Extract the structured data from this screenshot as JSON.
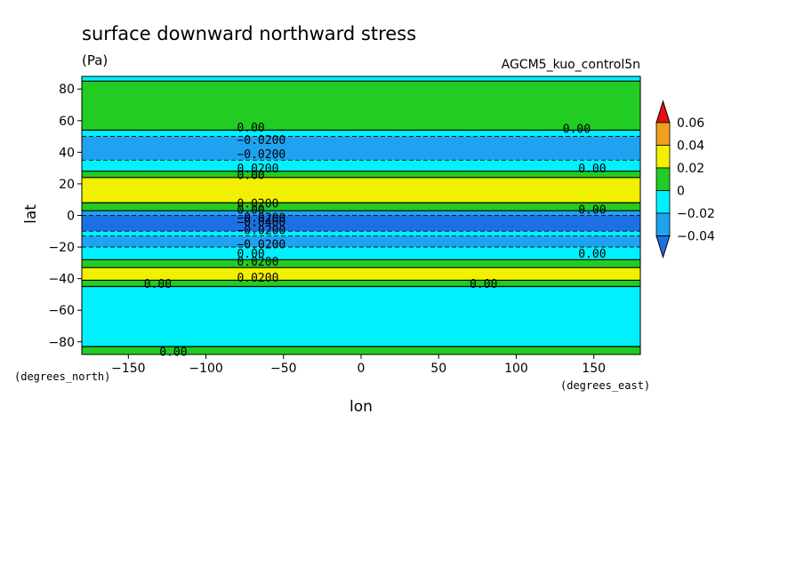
{
  "chart_data": {
    "type": "heatmap",
    "title": "surface downward northward stress",
    "units": "(Pa)",
    "dataset": "AGCM5_kuo_control5n",
    "xlabel": "lon",
    "ylabel": "lat",
    "x_units": "(degrees_east)",
    "y_units": "(degrees_north)",
    "xlim": [
      -180,
      180
    ],
    "ylim": [
      -88,
      88
    ],
    "x_ticks": [
      -150,
      -100,
      -50,
      0,
      50,
      100,
      150
    ],
    "y_ticks": [
      -80,
      -60,
      -40,
      -20,
      0,
      20,
      40,
      60,
      80
    ],
    "x_tick_labels": [
      "−150",
      "−100",
      "−50",
      "0",
      "50",
      "100",
      "150"
    ],
    "y_tick_labels": [
      "−80",
      "−60",
      "−40",
      "−20",
      "0",
      "20",
      "40",
      "60",
      "80"
    ],
    "colorbar": {
      "levels": [
        -0.04,
        -0.02,
        0,
        0.02,
        0.04,
        0.06
      ],
      "tick_labels": [
        "−0.04",
        "−0.02",
        "0",
        "0.02",
        "0.04",
        "0.06"
      ],
      "colors": [
        "#1e6fe6",
        "#1fa3f0",
        "#00f0ff",
        "#22cc22",
        "#f0f000",
        "#f0a020",
        "#e61010"
      ]
    },
    "zonal_bands": [
      {
        "lat": [
          -88,
          -83
        ],
        "value": 0.01
      },
      {
        "lat": [
          -83,
          -45
        ],
        "value": -0.01
      },
      {
        "lat": [
          -45,
          -41
        ],
        "value": 0.01
      },
      {
        "lat": [
          -41,
          -33
        ],
        "value": 0.025
      },
      {
        "lat": [
          -33,
          -28
        ],
        "value": 0.01
      },
      {
        "lat": [
          -28,
          -20
        ],
        "value": -0.01
      },
      {
        "lat": [
          -20,
          -13
        ],
        "value": -0.025
      },
      {
        "lat": [
          -13,
          -10
        ],
        "value": -0.01
      },
      {
        "lat": [
          -10,
          0
        ],
        "value": -0.045
      },
      {
        "lat": [
          0,
          3
        ],
        "value": -0.025
      },
      {
        "lat": [
          3,
          8
        ],
        "value": 0.01
      },
      {
        "lat": [
          8,
          24
        ],
        "value": 0.025
      },
      {
        "lat": [
          24,
          28
        ],
        "value": 0.01
      },
      {
        "lat": [
          28,
          35
        ],
        "value": -0.01
      },
      {
        "lat": [
          35,
          50
        ],
        "value": -0.025
      },
      {
        "lat": [
          50,
          54
        ],
        "value": -0.01
      },
      {
        "lat": [
          54,
          85
        ],
        "value": 0.01
      },
      {
        "lat": [
          85,
          88
        ],
        "value": -0.01
      }
    ],
    "contour_labels": [
      "0.00",
      "−0.0200",
      "0.0200",
      "−0.0400"
    ]
  }
}
